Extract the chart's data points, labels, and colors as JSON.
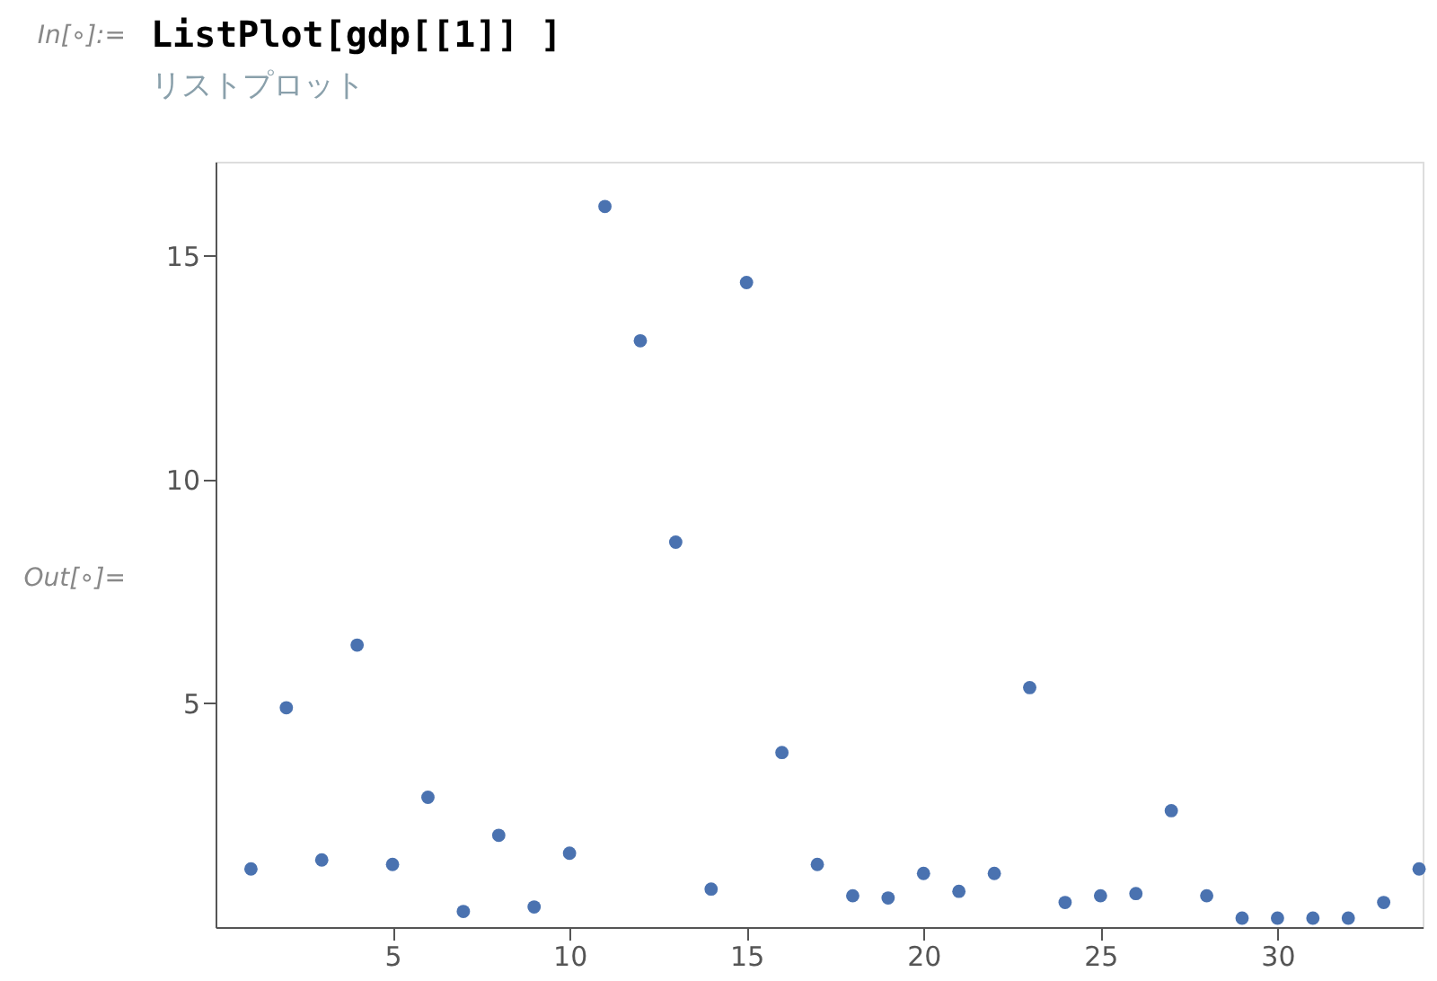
{
  "chart_data": {
    "type": "scatter",
    "annotations": [
      "In[∘]:=",
      "ListPlot[gdp[[1]] ]",
      "リストプロット",
      "Out[∘]="
    ],
    "x": [
      1,
      2,
      3,
      4,
      5,
      6,
      7,
      8,
      9,
      10,
      11,
      12,
      13,
      14,
      15,
      16,
      17,
      18,
      19,
      20,
      21,
      22,
      23,
      24,
      25,
      26,
      27,
      28,
      29,
      30,
      31,
      32,
      33,
      34
    ],
    "series": [
      {
        "color": "#4a72b0",
        "values": [
          1.3,
          4.9,
          1.5,
          6.3,
          1.4,
          2.9,
          0.35,
          2.05,
          0.45,
          1.65,
          16.1,
          13.1,
          8.6,
          0.85,
          14.4,
          3.9,
          1.4,
          0.7,
          0.65,
          1.2,
          0.8,
          1.2,
          5.35,
          0.55,
          0.7,
          0.75,
          2.6,
          0.7,
          0.2,
          0.2,
          0.2,
          0.2,
          0.55,
          1.3
        ]
      }
    ],
    "xlim": [
      0,
      34.1
    ],
    "ylim": [
      0,
      17.1
    ],
    "xticks": [
      5,
      10,
      15,
      20,
      25,
      30
    ],
    "yticks": [
      5,
      10,
      15
    ],
    "grid": false,
    "marker": "circle"
  }
}
